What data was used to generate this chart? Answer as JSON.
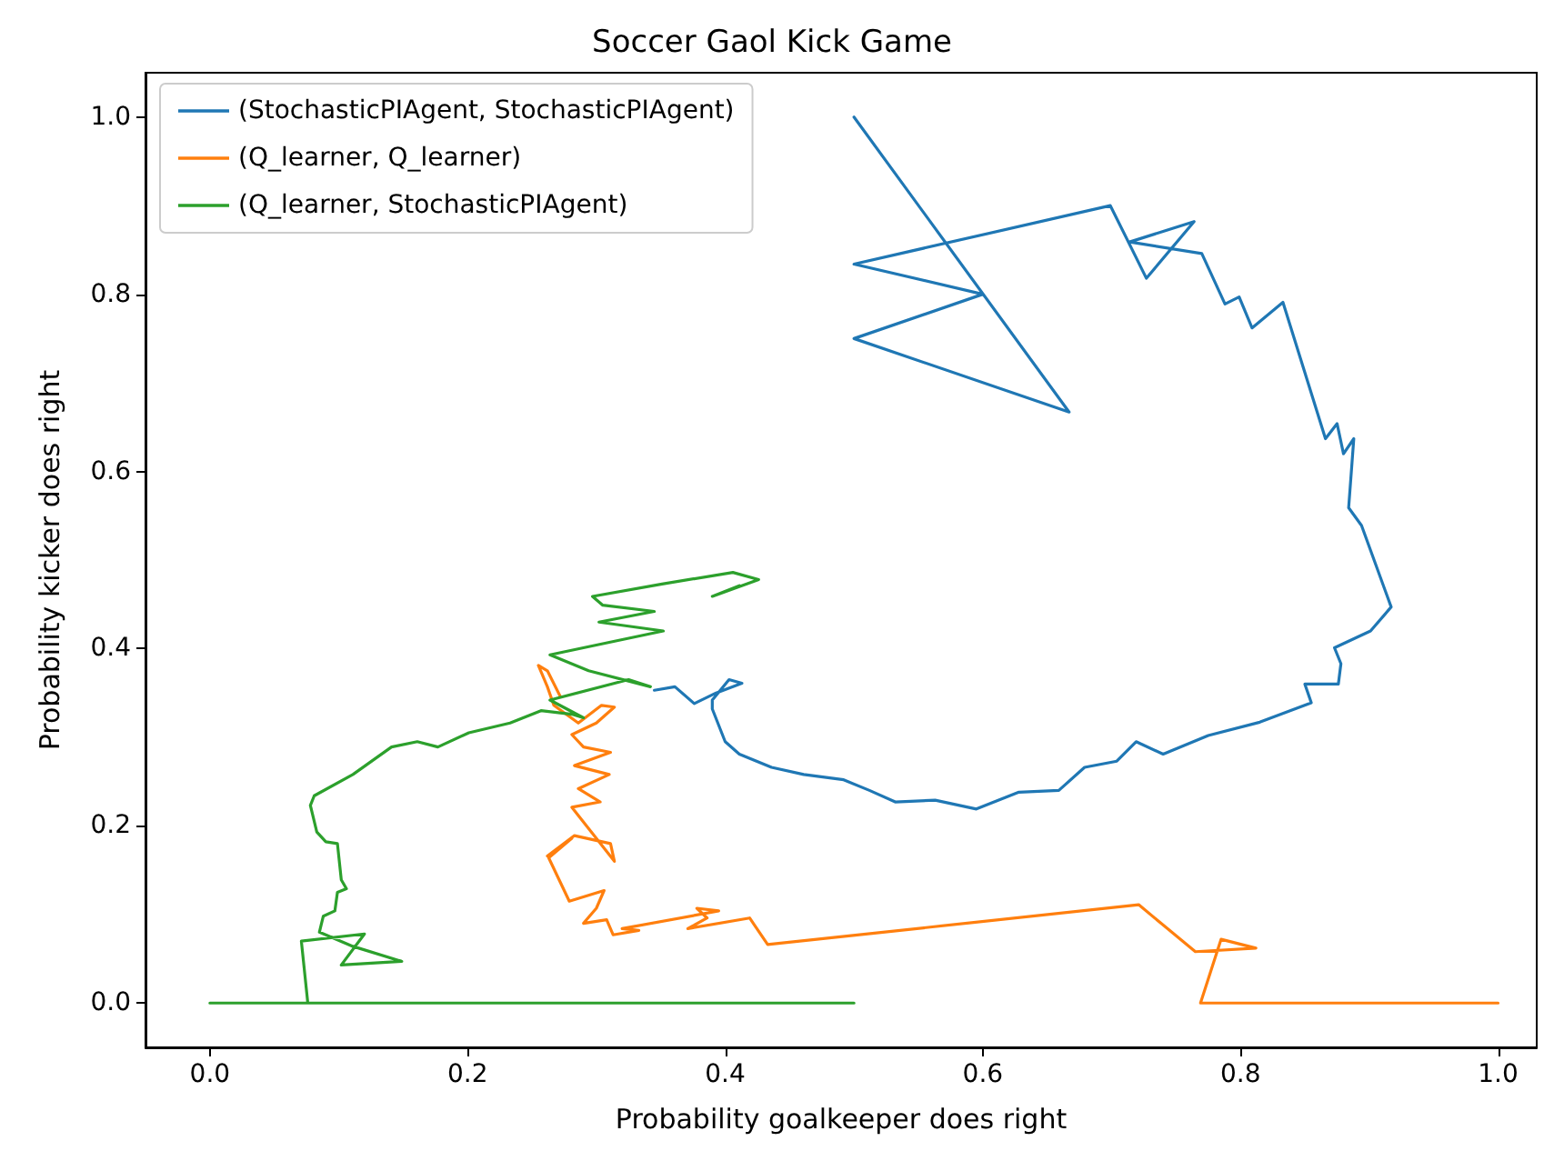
{
  "chart_data": {
    "type": "line",
    "title": "Soccer Gaol Kick Game",
    "xlabel": "Probability goalkeeper does right",
    "ylabel": "Probability kicker does right",
    "xlim": [
      -0.05,
      1.03
    ],
    "ylim": [
      -0.05,
      1.05
    ],
    "xticks": [
      {
        "value": 0,
        "label": "0.0"
      },
      0.2,
      0.4,
      0.6,
      0.8,
      {
        "value": 1,
        "label": "1.0"
      }
    ],
    "yticks": [
      {
        "value": 0,
        "label": "0.0"
      },
      0.2,
      0.4,
      0.6,
      0.8,
      {
        "value": 1,
        "label": "1.0"
      }
    ],
    "grid": false,
    "legend": "top left",
    "marker": "none",
    "line_style": "solid",
    "series": [
      {
        "name": "(StochasticPIAgent, StochasticPIAgent)",
        "color": "#1f77b4",
        "x": [
          0.5,
          0.667,
          0.5,
          0.6,
          0.5,
          0.699,
          0.727,
          0.764,
          0.714,
          0.77,
          0.788,
          0.799,
          0.809,
          0.833,
          0.866,
          0.875,
          0.88,
          0.888,
          0.884,
          0.894,
          0.917,
          0.901,
          0.873,
          0.878,
          0.876,
          0.85,
          0.855,
          0.815,
          0.775,
          0.74,
          0.719,
          0.704,
          0.679,
          0.659,
          0.628,
          0.595,
          0.563,
          0.532,
          0.512,
          0.492,
          0.461,
          0.436,
          0.411,
          0.4,
          0.39,
          0.39,
          0.403,
          0.413,
          0.393,
          0.376,
          0.361,
          0.345
        ],
        "values": [
          1.0,
          0.667,
          0.75,
          0.8,
          0.834,
          0.9,
          0.818,
          0.882,
          0.859,
          0.846,
          0.789,
          0.797,
          0.762,
          0.791,
          0.637,
          0.654,
          0.62,
          0.637,
          0.559,
          0.539,
          0.447,
          0.42,
          0.401,
          0.383,
          0.36,
          0.36,
          0.339,
          0.317,
          0.302,
          0.281,
          0.295,
          0.273,
          0.266,
          0.24,
          0.238,
          0.219,
          0.229,
          0.227,
          0.24,
          0.252,
          0.258,
          0.266,
          0.281,
          0.295,
          0.332,
          0.342,
          0.365,
          0.361,
          0.35,
          0.338,
          0.357,
          0.353
        ]
      },
      {
        "name": "(Q_learner, Q_learner)",
        "color": "#ff7f0e",
        "x": [
          1.0,
          0.769,
          0.785,
          0.812,
          0.765,
          0.721,
          0.433,
          0.419,
          0.371,
          0.386,
          0.378,
          0.395,
          0.32,
          0.333,
          0.313,
          0.308,
          0.29,
          0.3,
          0.306,
          0.279,
          0.263,
          0.281,
          0.262,
          0.283,
          0.311,
          0.314,
          0.281,
          0.303,
          0.286,
          0.31,
          0.283,
          0.311,
          0.29,
          0.281,
          0.3,
          0.314,
          0.304,
          0.286,
          0.267,
          0.262,
          0.255,
          0.262,
          0.272
        ],
        "values": [
          0.0,
          0.0,
          0.072,
          0.062,
          0.058,
          0.111,
          0.066,
          0.096,
          0.084,
          0.096,
          0.107,
          0.104,
          0.084,
          0.082,
          0.077,
          0.094,
          0.09,
          0.107,
          0.127,
          0.115,
          0.164,
          0.186,
          0.166,
          0.189,
          0.18,
          0.16,
          0.221,
          0.227,
          0.242,
          0.258,
          0.268,
          0.283,
          0.289,
          0.303,
          0.316,
          0.334,
          0.336,
          0.316,
          0.336,
          0.357,
          0.381,
          0.375,
          0.346
        ]
      },
      {
        "name": "(Q_learner, StochasticPIAgent)",
        "color": "#2ca02c",
        "x": [
          0.0,
          0.5,
          0.076,
          0.071,
          0.12,
          0.102,
          0.149,
          0.111,
          0.085,
          0.088,
          0.097,
          0.099,
          0.106,
          0.102,
          0.099,
          0.09,
          0.083,
          0.078,
          0.081,
          0.111,
          0.141,
          0.161,
          0.177,
          0.201,
          0.233,
          0.257,
          0.281,
          0.29,
          0.264,
          0.325,
          0.342,
          0.294,
          0.264,
          0.3,
          0.352,
          0.302,
          0.345,
          0.305,
          0.297,
          0.351,
          0.406,
          0.426,
          0.39,
          0.411
        ],
        "values": [
          0.0,
          0.0,
          0.0,
          0.07,
          0.078,
          0.043,
          0.047,
          0.064,
          0.08,
          0.098,
          0.104,
          0.125,
          0.129,
          0.139,
          0.18,
          0.182,
          0.193,
          0.223,
          0.234,
          0.258,
          0.289,
          0.295,
          0.289,
          0.305,
          0.316,
          0.33,
          0.326,
          0.322,
          0.342,
          0.365,
          0.357,
          0.375,
          0.393,
          0.404,
          0.42,
          0.43,
          0.442,
          0.449,
          0.459,
          0.473,
          0.486,
          0.478,
          0.459,
          0.471
        ]
      }
    ]
  }
}
